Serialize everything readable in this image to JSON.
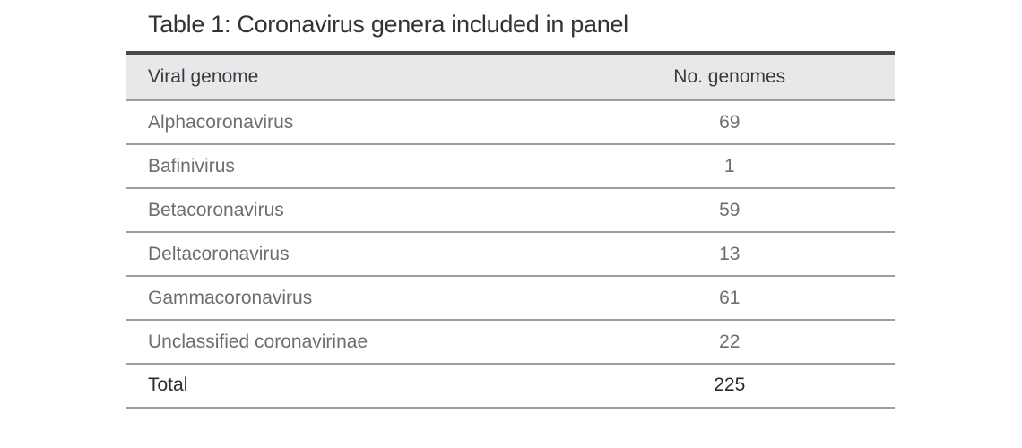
{
  "caption": "Table 1: Coronavirus genera included in panel",
  "table": {
    "columns": [
      "Viral genome",
      "No. genomes"
    ],
    "rows": [
      {
        "genome": "Alphacoronavirus",
        "count": "69"
      },
      {
        "genome": "Bafinivirus",
        "count": "1"
      },
      {
        "genome": "Betacoronavirus",
        "count": "59"
      },
      {
        "genome": "Deltacoronavirus",
        "count": "13"
      },
      {
        "genome": "Gammacoronavirus",
        "count": "61"
      },
      {
        "genome": "Unclassified coronavirinae",
        "count": "22"
      }
    ],
    "total": {
      "label": "Total",
      "count": "225"
    }
  },
  "colors": {
    "page_background": "#ffffff",
    "top_rule": "#48484d",
    "header_background": "#e8e8ea",
    "header_text": "#3a3a3e",
    "row_divider": "#9d9da1",
    "body_text": "#6e6e72",
    "total_text": "#2b2b2e",
    "title_text": "#333336"
  },
  "chart_data": {
    "type": "table",
    "title": "Table 1: Coronavirus genera included in panel",
    "categories": [
      "Alphacoronavirus",
      "Bafinivirus",
      "Betacoronavirus",
      "Deltacoronavirus",
      "Gammacoronavirus",
      "Unclassified coronavirinae"
    ],
    "values": [
      69,
      1,
      59,
      13,
      61,
      22
    ],
    "total": 225,
    "xlabel": "Viral genome",
    "ylabel": "No. genomes"
  }
}
